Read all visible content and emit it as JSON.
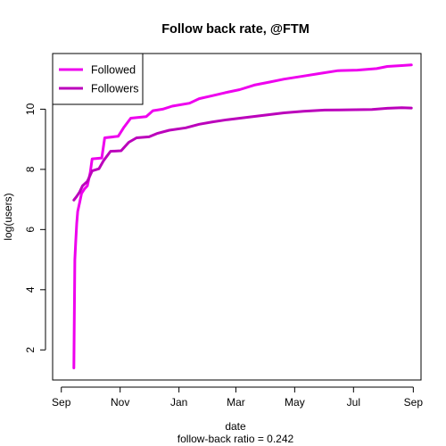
{
  "chart_data": {
    "type": "line",
    "title": "Follow back rate, @FTM",
    "xlabel": "date",
    "subtitle": "follow-back ratio = 0.242",
    "ylabel": "log(users)",
    "x_ticks": [
      {
        "date": "2013-09-01",
        "label": "Sep"
      },
      {
        "date": "2013-11-01",
        "label": "Nov"
      },
      {
        "date": "2014-01-01",
        "label": "Jan"
      },
      {
        "date": "2014-03-01",
        "label": "Mar"
      },
      {
        "date": "2014-05-01",
        "label": "May"
      },
      {
        "date": "2014-07-01",
        "label": "Jul"
      },
      {
        "date": "2014-09-01",
        "label": "Sep"
      }
    ],
    "y_ticks": [
      2,
      4,
      6,
      8,
      10
    ],
    "xlim": [
      "2013-08-23",
      "2014-09-09"
    ],
    "ylim": [
      1.0,
      11.85
    ],
    "legend": {
      "position": "top-left",
      "entries": [
        "Followed",
        "Followers"
      ]
    },
    "series": [
      {
        "name": "Followed",
        "color": "#ee00ee",
        "points": [
          {
            "x": "2013-09-14",
            "y": 1.4
          },
          {
            "x": "2013-09-15",
            "y": 5.0
          },
          {
            "x": "2013-09-16",
            "y": 5.6
          },
          {
            "x": "2013-09-17",
            "y": 6.2
          },
          {
            "x": "2013-09-18",
            "y": 6.6
          },
          {
            "x": "2013-09-20",
            "y": 6.9
          },
          {
            "x": "2013-09-22",
            "y": 7.2
          },
          {
            "x": "2013-09-25",
            "y": 7.35
          },
          {
            "x": "2013-09-28",
            "y": 7.45
          },
          {
            "x": "2013-10-01",
            "y": 7.9
          },
          {
            "x": "2013-10-03",
            "y": 8.35
          },
          {
            "x": "2013-10-13",
            "y": 8.38
          },
          {
            "x": "2013-10-16",
            "y": 9.05
          },
          {
            "x": "2013-10-30",
            "y": 9.1
          },
          {
            "x": "2013-11-05",
            "y": 9.4
          },
          {
            "x": "2013-11-12",
            "y": 9.7
          },
          {
            "x": "2013-11-28",
            "y": 9.75
          },
          {
            "x": "2013-12-05",
            "y": 9.95
          },
          {
            "x": "2013-12-15",
            "y": 10.0
          },
          {
            "x": "2013-12-25",
            "y": 10.1
          },
          {
            "x": "2014-01-12",
            "y": 10.2
          },
          {
            "x": "2014-01-22",
            "y": 10.35
          },
          {
            "x": "2014-02-05",
            "y": 10.45
          },
          {
            "x": "2014-02-18",
            "y": 10.55
          },
          {
            "x": "2014-03-05",
            "y": 10.65
          },
          {
            "x": "2014-03-20",
            "y": 10.8
          },
          {
            "x": "2014-04-05",
            "y": 10.9
          },
          {
            "x": "2014-04-20",
            "y": 11.0
          },
          {
            "x": "2014-05-10",
            "y": 11.1
          },
          {
            "x": "2014-05-30",
            "y": 11.2
          },
          {
            "x": "2014-06-15",
            "y": 11.28
          },
          {
            "x": "2014-07-05",
            "y": 11.3
          },
          {
            "x": "2014-07-25",
            "y": 11.35
          },
          {
            "x": "2014-08-05",
            "y": 11.42
          },
          {
            "x": "2014-08-20",
            "y": 11.45
          },
          {
            "x": "2014-08-30",
            "y": 11.47
          }
        ]
      },
      {
        "name": "Followers",
        "color": "#bb00bb",
        "points": [
          {
            "x": "2013-09-14",
            "y": 6.98
          },
          {
            "x": "2013-09-17",
            "y": 7.1
          },
          {
            "x": "2013-09-20",
            "y": 7.25
          },
          {
            "x": "2013-09-23",
            "y": 7.45
          },
          {
            "x": "2013-09-28",
            "y": 7.6
          },
          {
            "x": "2013-10-03",
            "y": 7.95
          },
          {
            "x": "2013-10-10",
            "y": 8.02
          },
          {
            "x": "2013-10-15",
            "y": 8.3
          },
          {
            "x": "2013-10-22",
            "y": 8.6
          },
          {
            "x": "2013-11-02",
            "y": 8.62
          },
          {
            "x": "2013-11-10",
            "y": 8.9
          },
          {
            "x": "2013-11-18",
            "y": 9.05
          },
          {
            "x": "2013-12-01",
            "y": 9.08
          },
          {
            "x": "2013-12-10",
            "y": 9.2
          },
          {
            "x": "2013-12-22",
            "y": 9.3
          },
          {
            "x": "2014-01-08",
            "y": 9.38
          },
          {
            "x": "2014-01-22",
            "y": 9.5
          },
          {
            "x": "2014-02-05",
            "y": 9.58
          },
          {
            "x": "2014-02-20",
            "y": 9.65
          },
          {
            "x": "2014-03-10",
            "y": 9.72
          },
          {
            "x": "2014-03-30",
            "y": 9.8
          },
          {
            "x": "2014-04-20",
            "y": 9.88
          },
          {
            "x": "2014-05-10",
            "y": 9.93
          },
          {
            "x": "2014-06-01",
            "y": 9.97
          },
          {
            "x": "2014-06-25",
            "y": 9.98
          },
          {
            "x": "2014-07-20",
            "y": 9.99
          },
          {
            "x": "2014-08-05",
            "y": 10.03
          },
          {
            "x": "2014-08-20",
            "y": 10.05
          },
          {
            "x": "2014-08-30",
            "y": 10.04
          }
        ]
      }
    ]
  }
}
